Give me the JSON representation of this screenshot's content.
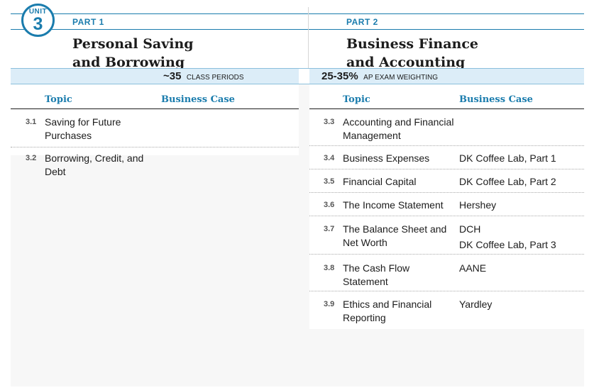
{
  "unit": {
    "label": "UNIT",
    "number": "3"
  },
  "part1": {
    "label": "PART 1",
    "title_line1": "Personal Saving",
    "title_line2": "and Borrowing",
    "stat_value": "~35",
    "stat_unit": "CLASS PERIODS",
    "col_topic": "Topic",
    "col_case": "Business Case",
    "rows": [
      {
        "num": "3.1",
        "topic": "Saving for Future Purchases",
        "cases": []
      },
      {
        "num": "3.2",
        "topic": "Borrowing, Credit, and Debt",
        "cases": []
      }
    ]
  },
  "part2": {
    "label": "PART 2",
    "title_line1": "Business Finance",
    "title_line2": "and Accounting",
    "stat_value": "25-35%",
    "stat_unit": "AP EXAM WEIGHTING",
    "col_topic": "Topic",
    "col_case": "Business Case",
    "rows": [
      {
        "num": "3.3",
        "topic": "Accounting and Financial Management",
        "cases": []
      },
      {
        "num": "3.4",
        "topic": "Business Expenses",
        "cases": [
          "DK Coffee Lab, Part 1"
        ]
      },
      {
        "num": "3.5",
        "topic": "Financial Capital",
        "cases": [
          "DK Coffee Lab, Part 2"
        ]
      },
      {
        "num": "3.6",
        "topic": "The Income Statement",
        "cases": [
          "Hershey"
        ]
      },
      {
        "num": "3.7",
        "topic": "The Balance Sheet and Net Worth",
        "cases": [
          "DCH",
          "DK Coffee Lab, Part 3"
        ]
      },
      {
        "num": "3.8",
        "topic": "The Cash Flow Statement",
        "cases": [
          "AANE"
        ]
      },
      {
        "num": "3.9",
        "topic": "Ethics and Financial Reporting",
        "cases": [
          "Yardley"
        ]
      }
    ]
  },
  "colors": {
    "accent": "#1a7cad",
    "stat_bar": "#dcedf8",
    "background": "#f7f7f7"
  }
}
